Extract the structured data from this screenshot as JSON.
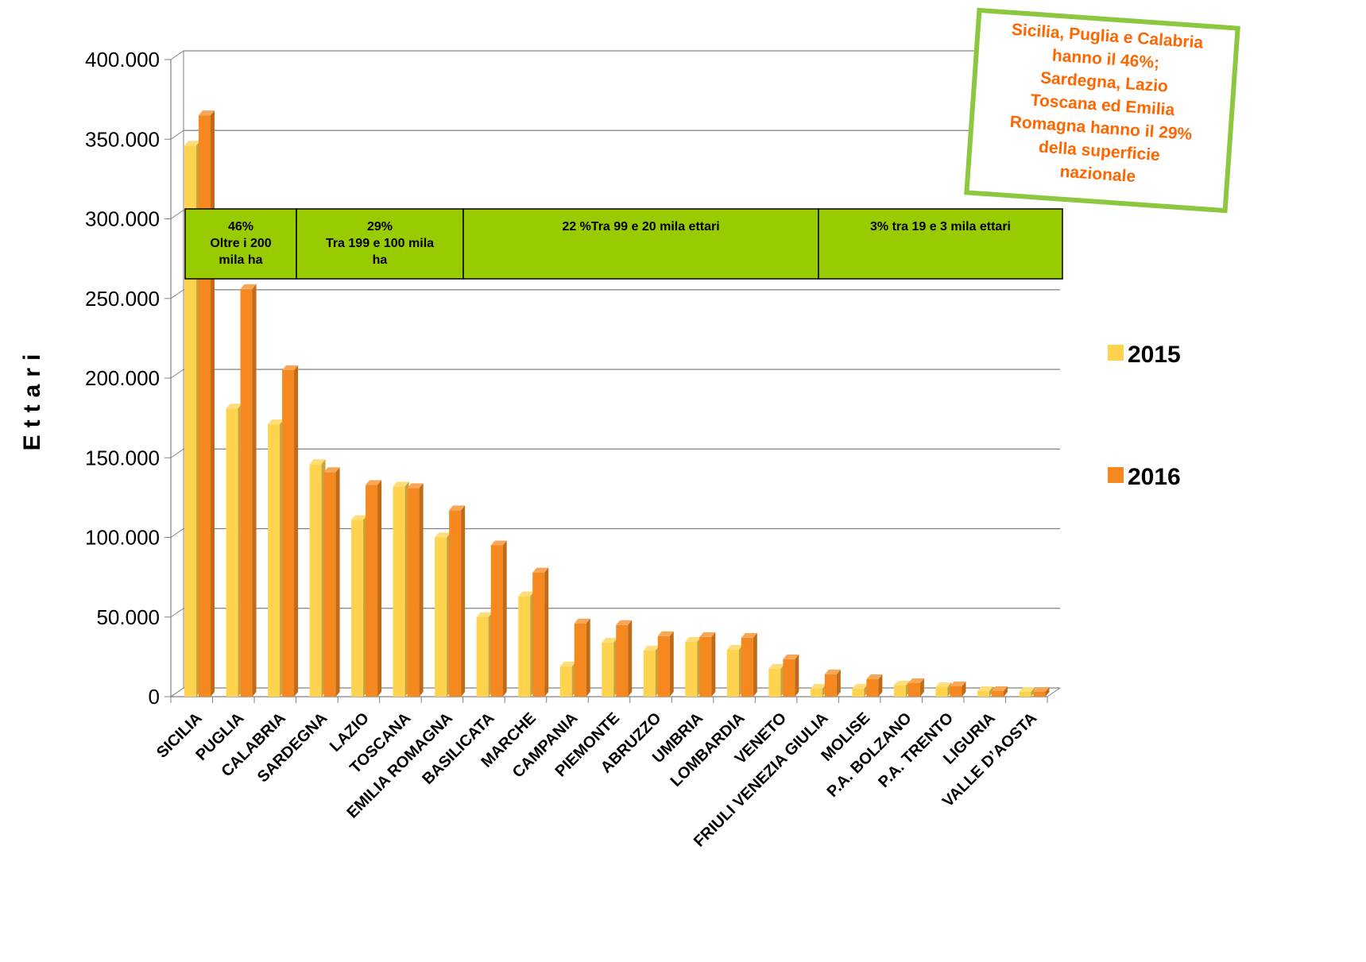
{
  "chart_data": {
    "type": "bar",
    "title": "",
    "xlabel": "",
    "ylabel": "Ettari",
    "ylim": [
      0,
      400000
    ],
    "yticks": [
      0,
      50000,
      100000,
      150000,
      200000,
      250000,
      300000,
      350000,
      400000
    ],
    "ytick_labels": [
      "0",
      "50.000",
      "100.000",
      "150.000",
      "200.000",
      "250.000",
      "300.000",
      "350.000",
      "400.000"
    ],
    "grid": true,
    "legend_position": "right",
    "categories": [
      "SICILIA",
      "PUGLIA",
      "CALABRIA",
      "SARDEGNA",
      "LAZIO",
      "TOSCANA",
      "EMILIA ROMAGNA",
      "BASILICATA",
      "MARCHE",
      "CAMPANIA",
      "PIEMONTE",
      "ABRUZZO",
      "UMBRIA",
      "LOMBARDIA",
      "VENETO",
      "FRIULI VENEZIA GIULIA",
      "MOLISE",
      "P.A. BOLZANO",
      "P.A. TRENTO",
      "LIGURIA",
      "VALLE D’AOSTA"
    ],
    "series": [
      {
        "name": "2015",
        "color": "#ffd34d",
        "values": [
          346000,
          181000,
          171000,
          146000,
          111000,
          132000,
          100000,
          50000,
          63000,
          19000,
          34000,
          29000,
          34500,
          29500,
          17500,
          5000,
          5000,
          7000,
          6000,
          3500,
          3000
        ]
      },
      {
        "name": "2016",
        "color": "#f5891f",
        "values": [
          365000,
          256000,
          205000,
          141000,
          133000,
          131000,
          117000,
          95000,
          78000,
          46000,
          45000,
          38000,
          37500,
          37000,
          23500,
          14000,
          11000,
          8500,
          6500,
          3500,
          3000
        ]
      }
    ],
    "bands": [
      {
        "line1": "46%",
        "line2": "Oltre i 200",
        "line3": "mila ha"
      },
      {
        "line1": "29%",
        "line2": "Tra 199 e 100 mila",
        "line3": "ha"
      },
      {
        "line1": "22 %Tra 99 e 20 mila ettari",
        "line2": "",
        "line3": ""
      },
      {
        "line1": "3% tra 19 e 3 mila ettari",
        "line2": "",
        "line3": ""
      }
    ],
    "callout": [
      "Sicilia, Puglia e Calabria",
      "hanno il 46%;",
      "Sardegna, Lazio",
      "Toscana ed Emilia",
      "Romagna hanno il 29%",
      "della superficie",
      "nazionale"
    ],
    "colors": {
      "band_fill": "#99cc00",
      "callout_border": "#8dc63f",
      "callout_text": "#ff6600",
      "grid": "#808080"
    }
  }
}
